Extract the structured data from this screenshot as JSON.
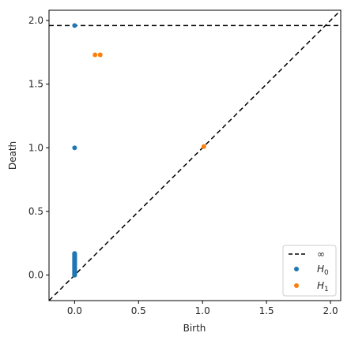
{
  "chart_data": {
    "type": "scatter",
    "title": "",
    "xlabel": "Birth",
    "ylabel": "Death",
    "xlim": [
      -0.2,
      2.08
    ],
    "ylim": [
      -0.2,
      2.08
    ],
    "xticks": [
      0.0,
      0.5,
      1.0,
      1.5,
      2.0
    ],
    "xtick_labels": [
      "0.0",
      "0.5",
      "1.0",
      "1.5",
      "2.0"
    ],
    "yticks": [
      0.0,
      0.5,
      1.0,
      1.5,
      2.0
    ],
    "ytick_labels": [
      "0.0",
      "0.5",
      "1.0",
      "1.5",
      "2.0"
    ],
    "grid": false,
    "legend_position": "bottom-right",
    "infinity_line": {
      "y": 1.96,
      "label": "∞",
      "color": "#000000"
    },
    "diagonal": true,
    "series": [
      {
        "name": "H0",
        "label_main": "H",
        "label_sub": "0",
        "color": "#1f77b4",
        "points": [
          [
            0,
            0.0
          ],
          [
            0,
            0.005
          ],
          [
            0,
            0.01
          ],
          [
            0,
            0.015
          ],
          [
            0,
            0.02
          ],
          [
            0,
            0.025
          ],
          [
            0,
            0.03
          ],
          [
            0,
            0.035
          ],
          [
            0,
            0.04
          ],
          [
            0,
            0.045
          ],
          [
            0,
            0.05
          ],
          [
            0,
            0.055
          ],
          [
            0,
            0.06
          ],
          [
            0,
            0.065
          ],
          [
            0,
            0.07
          ],
          [
            0,
            0.075
          ],
          [
            0,
            0.08
          ],
          [
            0,
            0.085
          ],
          [
            0,
            0.09
          ],
          [
            0,
            0.095
          ],
          [
            0,
            0.1
          ],
          [
            0,
            0.105
          ],
          [
            0,
            0.11
          ],
          [
            0,
            0.115
          ],
          [
            0,
            0.12
          ],
          [
            0,
            0.125
          ],
          [
            0,
            0.13
          ],
          [
            0,
            0.135
          ],
          [
            0,
            0.14
          ],
          [
            0,
            0.145
          ],
          [
            0,
            0.15
          ],
          [
            0,
            0.155
          ],
          [
            0,
            0.16
          ],
          [
            0,
            0.165
          ],
          [
            0,
            0.17
          ],
          [
            0,
            1.0
          ],
          [
            0,
            1.96
          ]
        ]
      },
      {
        "name": "H1",
        "label_main": "H",
        "label_sub": "1",
        "color": "#ff7f0e",
        "points": [
          [
            0.16,
            1.73
          ],
          [
            0.2,
            1.73
          ],
          [
            1.01,
            1.01
          ]
        ]
      }
    ]
  }
}
